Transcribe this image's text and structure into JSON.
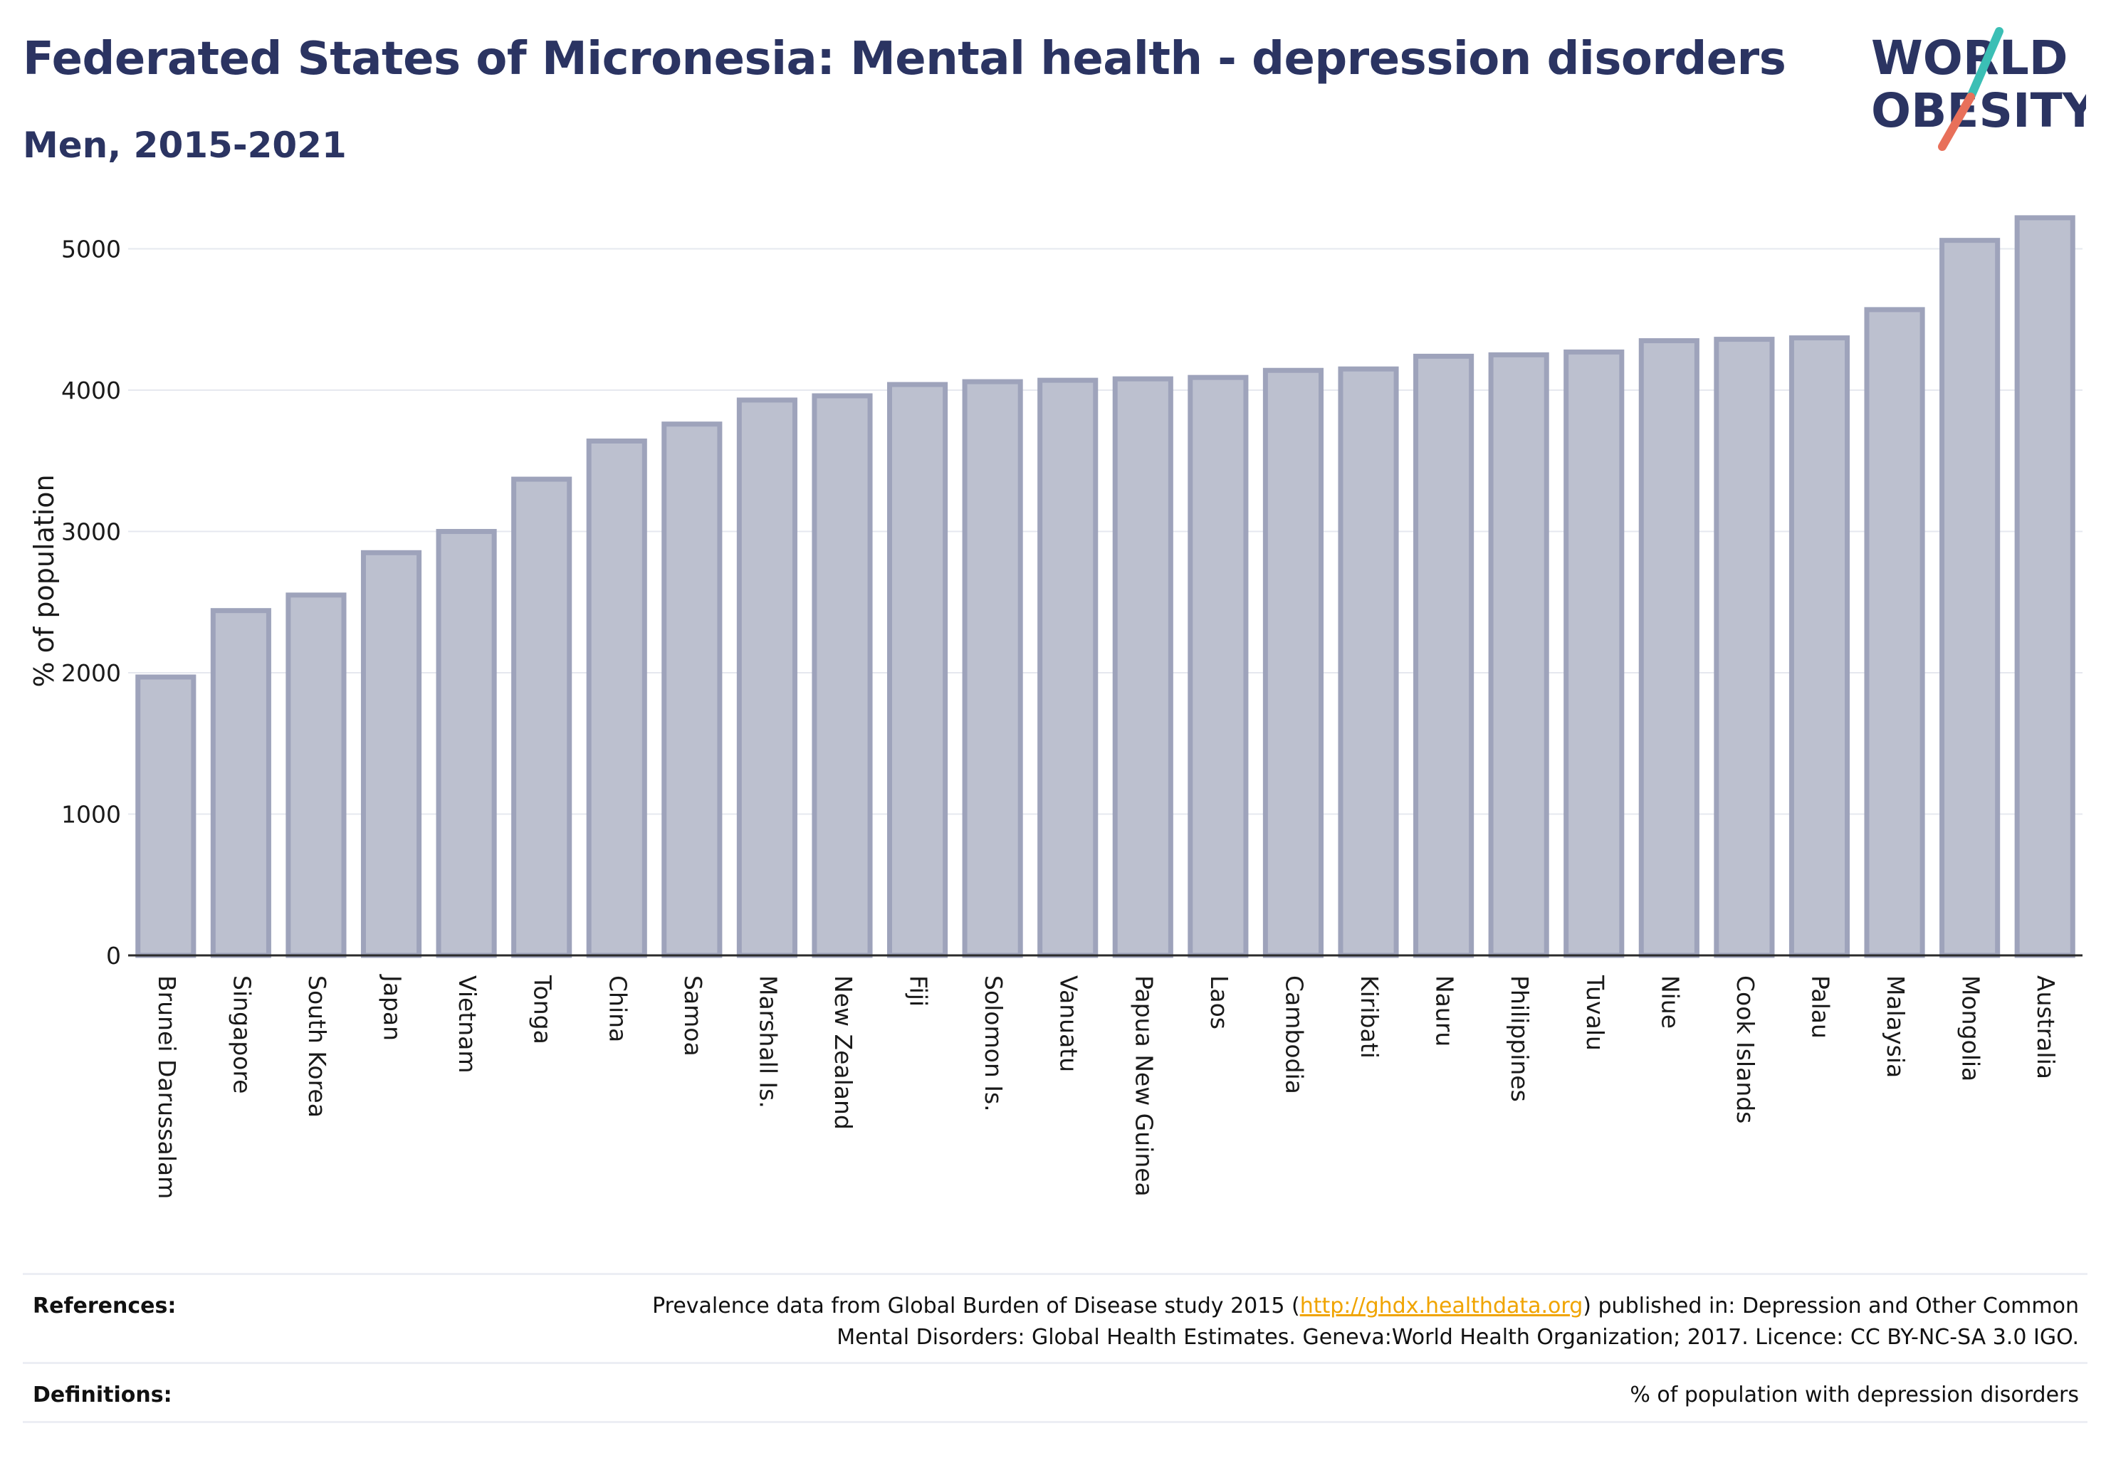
{
  "header": {
    "title": "Federated States of Micronesia: Mental health - depression disorders",
    "subtitle": "Men, 2015-2021"
  },
  "logo": {
    "line1": "WORLD",
    "line2": "OBESITY",
    "accent_teal": "#3bbfb5",
    "accent_coral": "#e8705a"
  },
  "chart_data": {
    "type": "bar",
    "title": "Federated States of Micronesia: Mental health - depression disorders",
    "subtitle": "Men, 2015-2021",
    "xlabel": "",
    "ylabel": "% of population",
    "ylim": [
      0,
      5300
    ],
    "yticks": [
      0,
      1000,
      2000,
      3000,
      4000,
      5000
    ],
    "grid": true,
    "bar_color": "#bcc0cf",
    "categories": [
      "Brunei Darussalam",
      "Singapore",
      "South Korea",
      "Japan",
      "Vietnam",
      "Tonga",
      "China",
      "Samoa",
      "Marshall Is.",
      "New Zealand",
      "Fiji",
      "Solomon Is.",
      "Vanuatu",
      "Papua New Guinea",
      "Laos",
      "Cambodia",
      "Kiribati",
      "Nauru",
      "Philippines",
      "Tuvalu",
      "Niue",
      "Cook Islands",
      "Palau",
      "Malaysia",
      "Mongolia",
      "Australia"
    ],
    "values": [
      1970,
      2440,
      2550,
      2850,
      3000,
      3370,
      3640,
      3760,
      3930,
      3960,
      4040,
      4060,
      4070,
      4080,
      4090,
      4140,
      4150,
      4240,
      4250,
      4270,
      4350,
      4360,
      4370,
      4570,
      5060,
      5220
    ]
  },
  "footer": {
    "references_label": "References:",
    "references_text_1": "Prevalence data from Global Burden of Disease study 2015 (",
    "references_link": "http://ghdx.healthdata.org",
    "references_text_2": ") published in: Depression and Other Common",
    "references_text_3": "Mental Disorders: Global Health Estimates. Geneva:World Health Organization; 2017. Licence: CC BY-NC-SA 3.0 IGO.",
    "definitions_label": "Definitions:",
    "definitions_text": "% of population with depression disorders"
  }
}
